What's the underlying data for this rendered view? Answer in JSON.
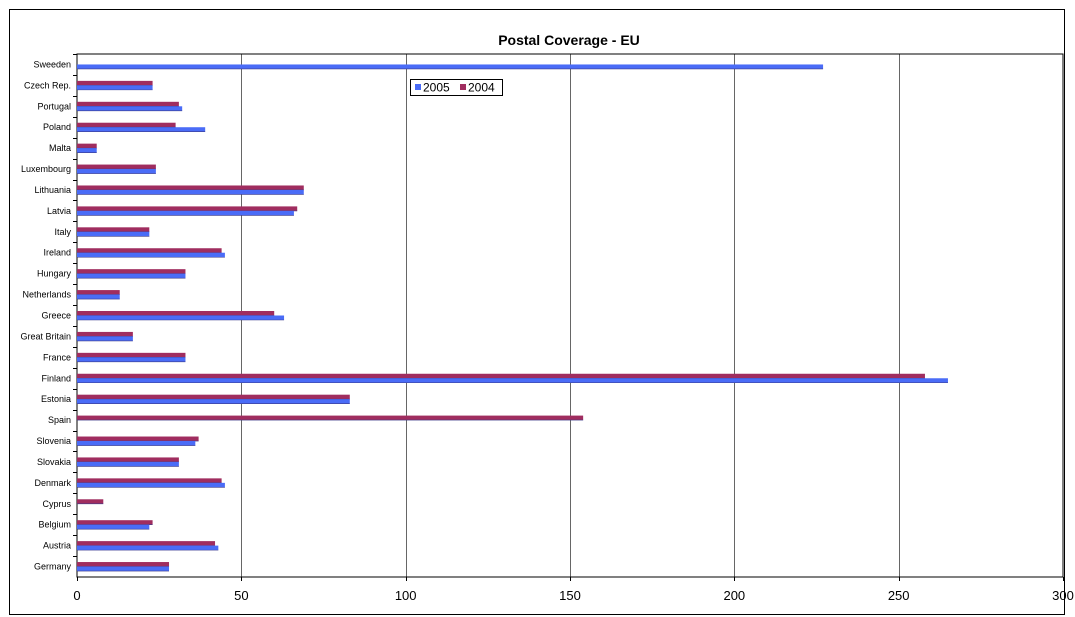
{
  "chart_data": {
    "type": "bar",
    "orientation": "horizontal",
    "title": "Postal Coverage - EU",
    "xlabel": "",
    "ylabel": "",
    "xlim": [
      0,
      300
    ],
    "x_ticks": [
      0,
      50,
      100,
      150,
      200,
      250,
      300
    ],
    "grid": "vertical",
    "legend_position": "top-center",
    "categories": [
      "Sweeden",
      "Czech Rep.",
      "Portugal",
      "Poland",
      "Malta",
      "Luxembourg",
      "Lithuania",
      "Latvia",
      "Italy",
      "Ireland",
      "Hungary",
      "Netherlands",
      "Greece",
      "Great Britain",
      "France",
      "Finland",
      "Estonia",
      "Spain",
      "Slovenia",
      "Slovakia",
      "Denmark",
      "Cyprus",
      "Belgium",
      "Austria",
      "Germany"
    ],
    "series": [
      {
        "name": "2005",
        "color": "#4a6cf7",
        "values": [
          227,
          23,
          32,
          39,
          6,
          24,
          69,
          66,
          22,
          45,
          33,
          13,
          63,
          17,
          33,
          265,
          83,
          null,
          36,
          31,
          45,
          null,
          22,
          43,
          28
        ]
      },
      {
        "name": "2004",
        "color": "#a02d5f",
        "values": [
          null,
          23,
          31,
          30,
          6,
          24,
          69,
          67,
          22,
          44,
          33,
          13,
          60,
          17,
          33,
          258,
          83,
          154,
          37,
          31,
          44,
          8,
          23,
          42,
          28
        ]
      }
    ]
  }
}
